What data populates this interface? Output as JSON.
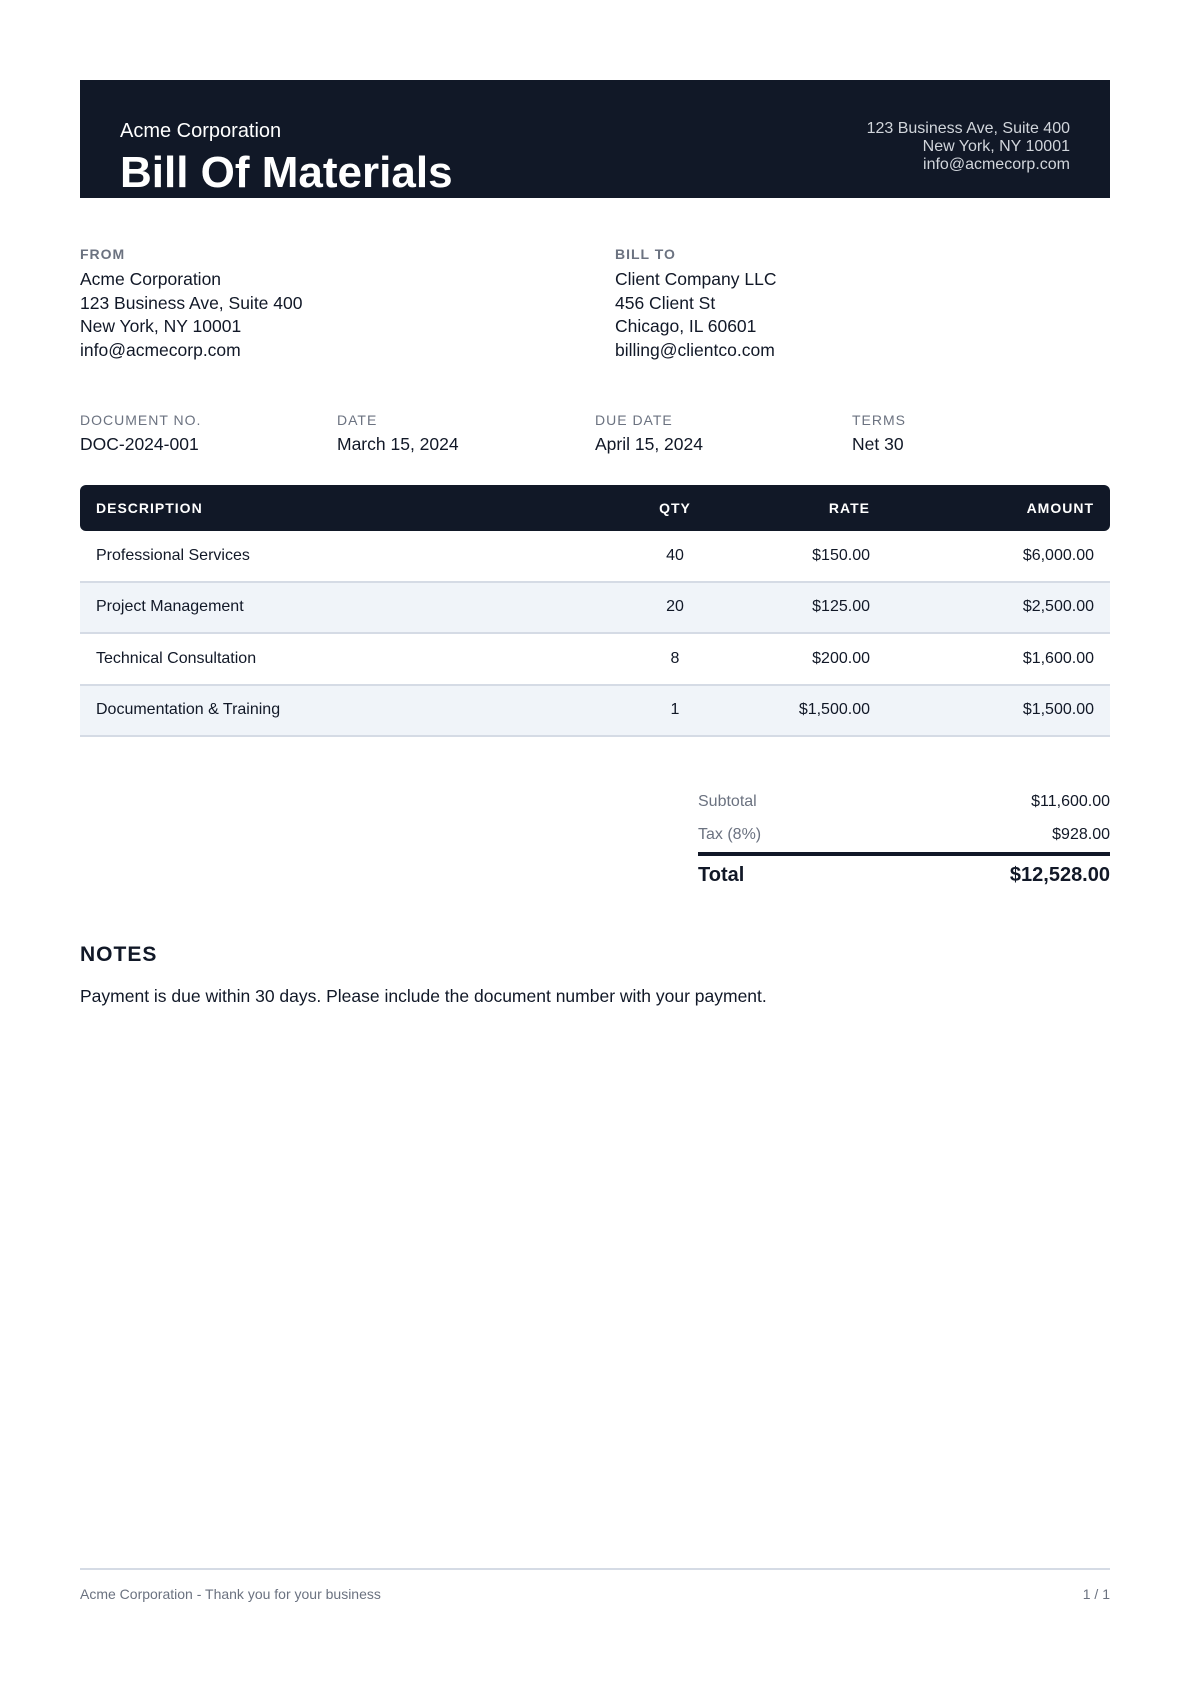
{
  "header": {
    "company": "Acme Corporation",
    "title": "Bill Of Materials",
    "address": [
      "123 Business Ave, Suite 400",
      "New York, NY 10001",
      "info@acmecorp.com"
    ]
  },
  "from": {
    "label": "FROM",
    "lines": [
      "Acme Corporation",
      "123 Business Ave, Suite 400",
      "New York, NY 10001",
      "info@acmecorp.com"
    ]
  },
  "bill_to": {
    "label": "BILL TO",
    "lines": [
      "Client Company LLC",
      "456 Client St",
      "Chicago, IL 60601",
      "billing@clientco.com"
    ]
  },
  "meta": [
    {
      "label": "DOCUMENT NO.",
      "value": "DOC-2024-001"
    },
    {
      "label": "DATE",
      "value": "March 15, 2024"
    },
    {
      "label": "DUE DATE",
      "value": "April 15, 2024"
    },
    {
      "label": "TERMS",
      "value": "Net 30"
    }
  ],
  "table": {
    "headers": [
      "DESCRIPTION",
      "QTY",
      "RATE",
      "AMOUNT"
    ],
    "rows": [
      [
        "Professional Services",
        "40",
        "$150.00",
        "$6,000.00"
      ],
      [
        "Project Management",
        "20",
        "$125.00",
        "$2,500.00"
      ],
      [
        "Technical Consultation",
        "8",
        "$200.00",
        "$1,600.00"
      ],
      [
        "Documentation & Training",
        "1",
        "$1,500.00",
        "$1,500.00"
      ]
    ]
  },
  "totals": {
    "subtotal_label": "Subtotal",
    "subtotal": "$11,600.00",
    "tax_label": "Tax (8%)",
    "tax": "$928.00",
    "total_label": "Total",
    "total": "$12,528.00"
  },
  "notes": {
    "heading": "NOTES",
    "text": "Payment is due within 30 days. Please include the document number with your payment."
  },
  "footer": {
    "left": "Acme Corporation - Thank you for your business",
    "page": "1 / 1"
  },
  "colors": {
    "primary": "#111827",
    "muted": "#6b7280",
    "row_alt": "#f0f4f9"
  }
}
